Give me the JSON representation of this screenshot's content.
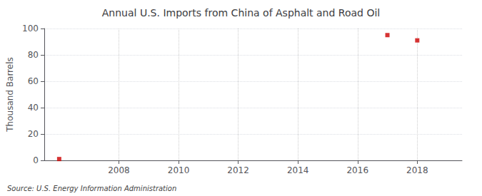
{
  "chart_data": {
    "type": "scatter",
    "title": "Annual U.S. Imports from China of Asphalt and Road Oil",
    "ylabel": "Thousand Barrels",
    "annotation": "Source: U.S. Energy Information Administration",
    "x": [
      2006,
      2017,
      2018
    ],
    "values": [
      1,
      95,
      91
    ],
    "color": "#cc0000",
    "marker": "square",
    "xlim": [
      2005.5,
      2019.5
    ],
    "xticks": [
      2008,
      2010,
      2012,
      2014,
      2016,
      2018
    ],
    "ylim": [
      0,
      100
    ],
    "yticks": [
      0,
      20,
      40,
      60,
      80,
      100
    ],
    "grid": true
  }
}
